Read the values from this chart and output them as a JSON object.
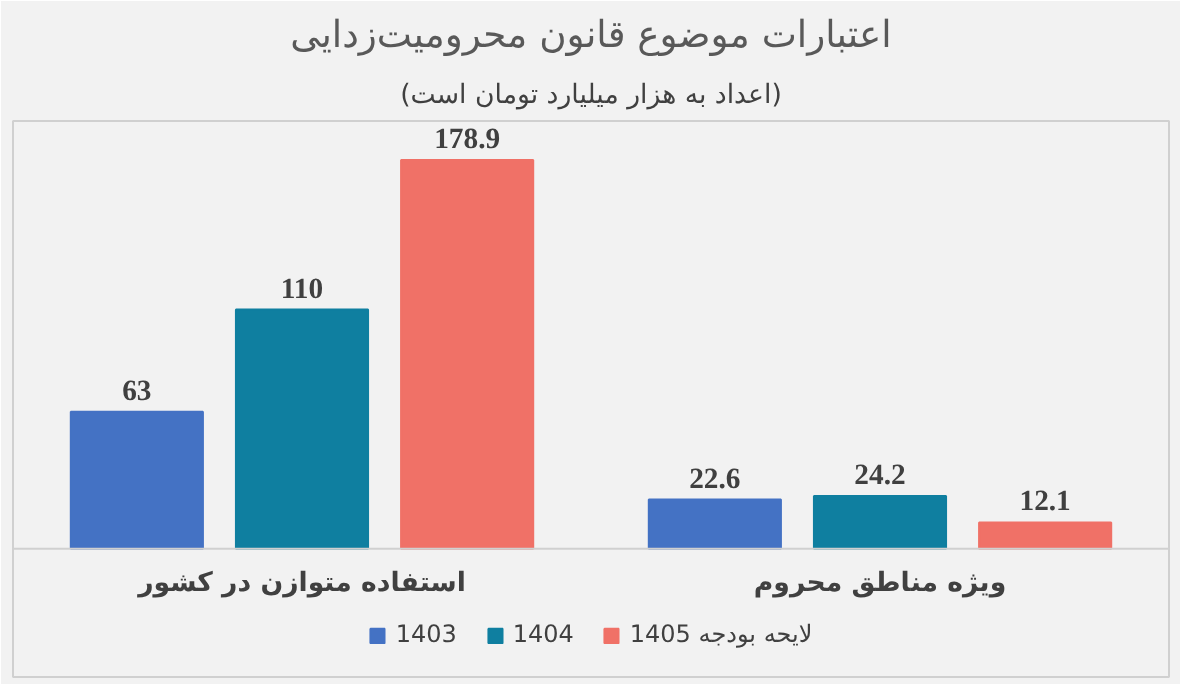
{
  "chart_data": {
    "type": "bar",
    "title": "اعتبارات موضوع قانون محرومیت‌زدایی",
    "subtitle": "(اعداد به هزار میلیارد تومان است)",
    "categories": [
      "استفاده متوازن در کشور",
      "ویژه مناطق محروم"
    ],
    "series": [
      {
        "name": "1403",
        "color": "#4472c4",
        "values": [
          63,
          22.6
        ]
      },
      {
        "name": "1404",
        "color": "#0f7fa0",
        "values": [
          110,
          24.2
        ]
      },
      {
        "name": "لایحه بودجه 1405",
        "color": "#f07167",
        "values": [
          178.9,
          12.1
        ]
      }
    ],
    "data_labels": true,
    "legend": "bottom"
  }
}
